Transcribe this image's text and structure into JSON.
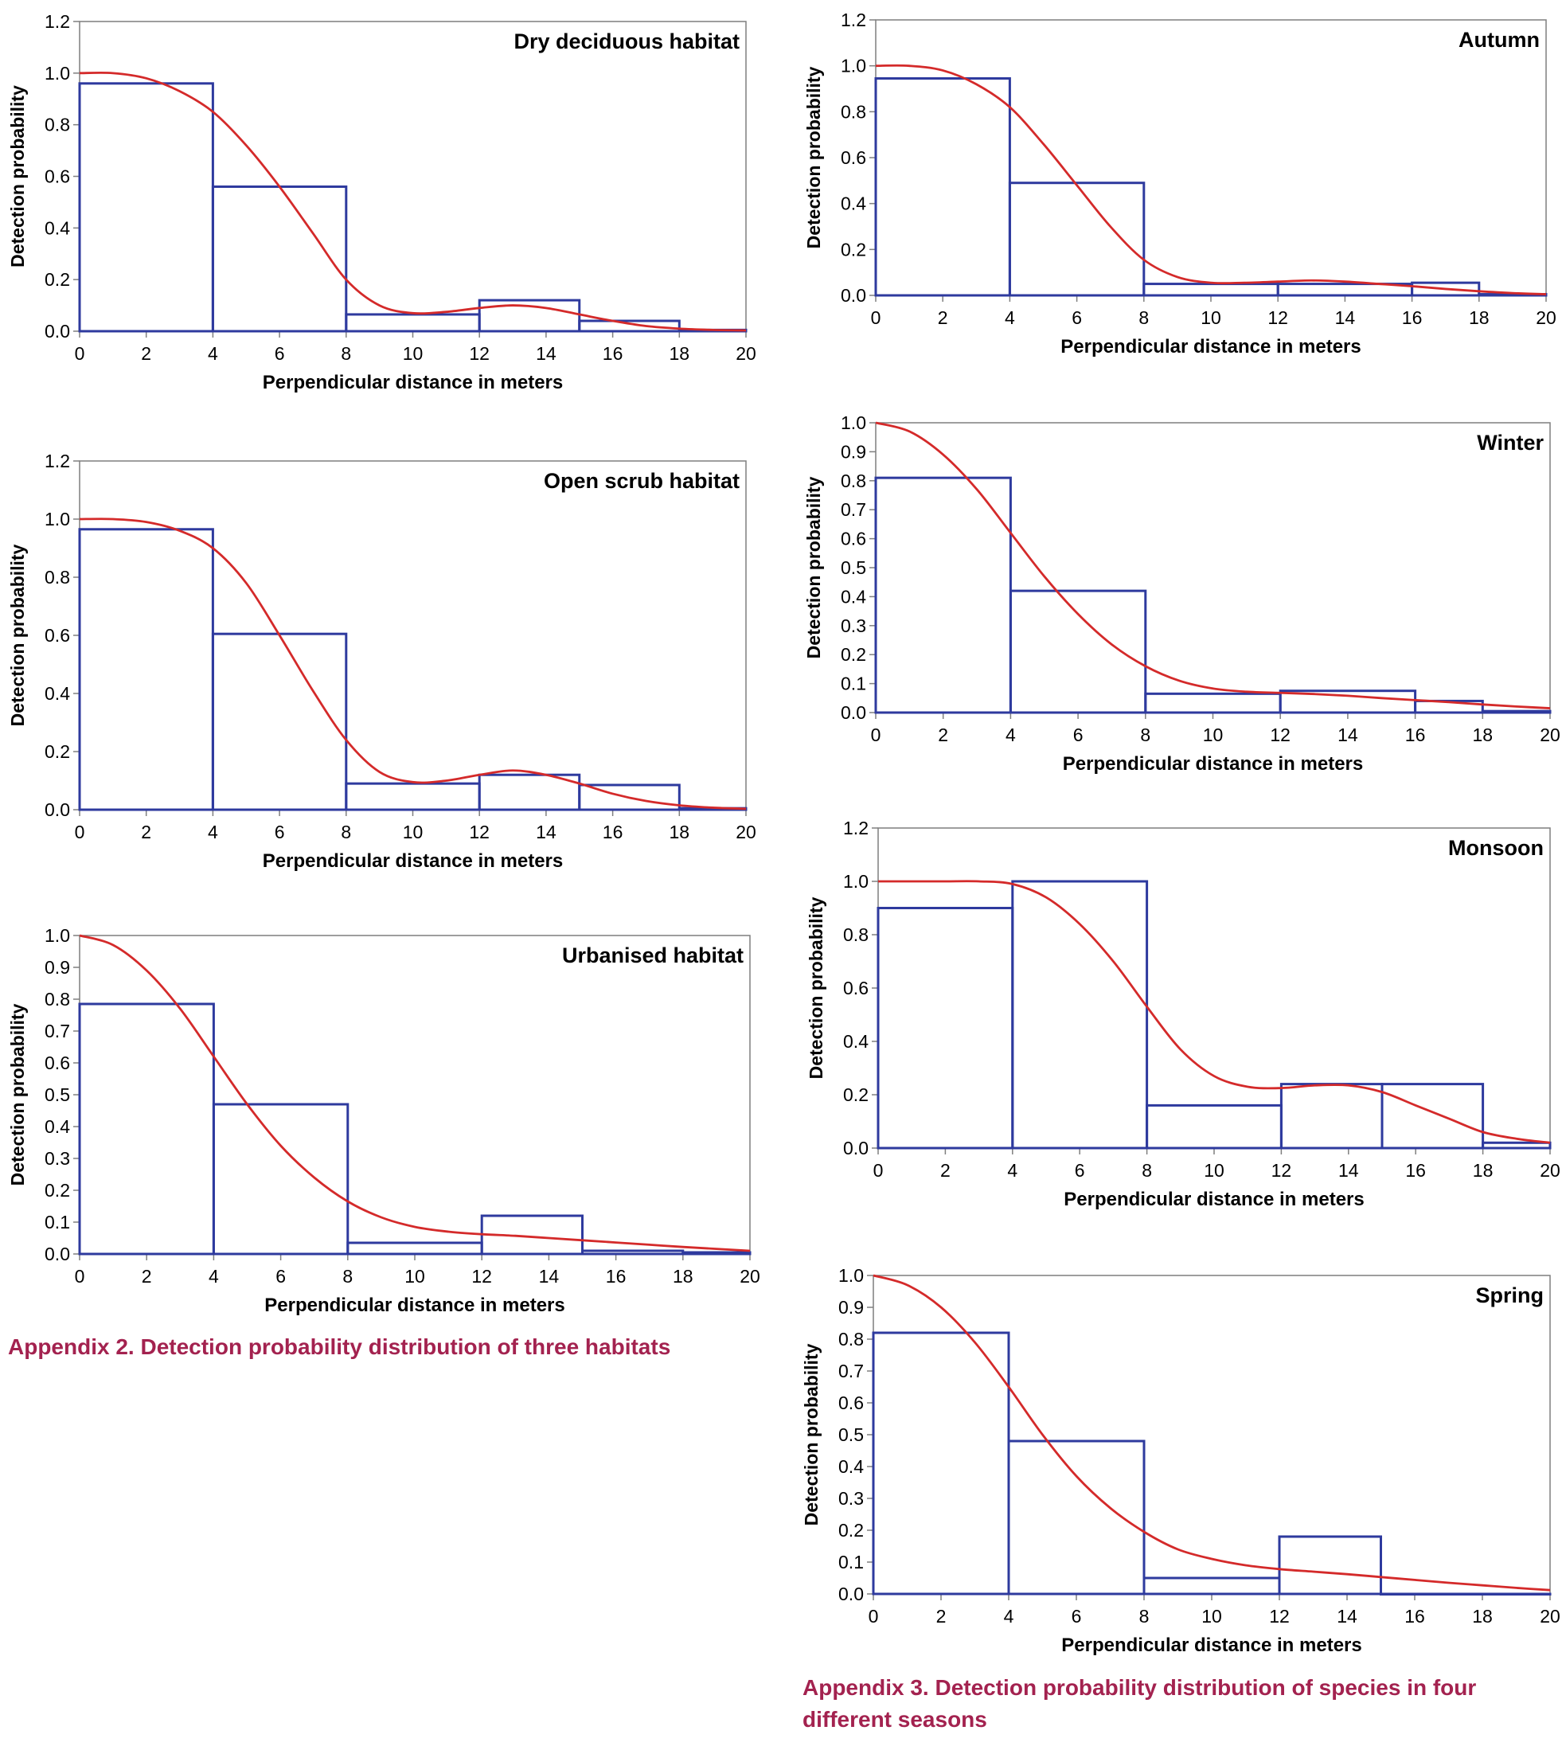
{
  "captions": {
    "appendix2": "Appendix 2. Detection probability distribution of three habitats",
    "appendix3": "Appendix 3. Detection probability distribution of species in four different seasons"
  },
  "colors": {
    "bars": "#2e3a9e",
    "curve": "#d42a2a",
    "caption": "#a3224f",
    "axes": "#7f7f7f"
  },
  "chart_data": [
    {
      "type": "bar",
      "title": "Dry deciduous habitat",
      "xlabel": "Perpendicular distance in meters",
      "ylabel": "Detection probability",
      "xlim": [
        0,
        20
      ],
      "ylim": [
        0,
        1.2
      ],
      "xticks": [
        0,
        2,
        4,
        6,
        8,
        10,
        12,
        14,
        16,
        18,
        20
      ],
      "yticks": [
        "0.0",
        "0.2",
        "0.4",
        "0.6",
        "0.8",
        "1.0",
        "1.2"
      ],
      "bins": [
        [
          0,
          4,
          0.96
        ],
        [
          4,
          8,
          0.56
        ],
        [
          8,
          12,
          0.065
        ],
        [
          12,
          15,
          0.12
        ],
        [
          15,
          18,
          0.04
        ],
        [
          18,
          20,
          0.005
        ]
      ],
      "curve": [
        [
          0,
          1.0
        ],
        [
          1,
          1.0
        ],
        [
          2,
          0.98
        ],
        [
          3,
          0.93
        ],
        [
          4,
          0.85
        ],
        [
          5,
          0.72
        ],
        [
          6,
          0.56
        ],
        [
          7,
          0.38
        ],
        [
          8,
          0.2
        ],
        [
          9,
          0.1
        ],
        [
          10,
          0.07
        ],
        [
          11,
          0.075
        ],
        [
          12,
          0.09
        ],
        [
          13,
          0.1
        ],
        [
          14,
          0.09
        ],
        [
          15,
          0.065
        ],
        [
          16,
          0.04
        ],
        [
          17,
          0.02
        ],
        [
          18,
          0.01
        ],
        [
          19,
          0.005
        ],
        [
          20,
          0.003
        ]
      ]
    },
    {
      "type": "bar",
      "title": "Open scrub habitat",
      "xlabel": "Perpendicular distance in meters",
      "ylabel": "Detection probability",
      "xlim": [
        0,
        20
      ],
      "ylim": [
        0,
        1.2
      ],
      "xticks": [
        0,
        2,
        4,
        6,
        8,
        10,
        12,
        14,
        16,
        18,
        20
      ],
      "yticks": [
        "0.0",
        "0.2",
        "0.4",
        "0.6",
        "0.8",
        "1.0",
        "1.2"
      ],
      "bins": [
        [
          0,
          4,
          0.965
        ],
        [
          4,
          8,
          0.605
        ],
        [
          8,
          12,
          0.09
        ],
        [
          12,
          15,
          0.12
        ],
        [
          15,
          18,
          0.085
        ],
        [
          18,
          20,
          0.005
        ]
      ],
      "curve": [
        [
          0,
          1.0
        ],
        [
          1,
          1.0
        ],
        [
          2,
          0.99
        ],
        [
          3,
          0.96
        ],
        [
          4,
          0.9
        ],
        [
          5,
          0.78
        ],
        [
          6,
          0.6
        ],
        [
          7,
          0.41
        ],
        [
          8,
          0.24
        ],
        [
          9,
          0.13
        ],
        [
          10,
          0.095
        ],
        [
          11,
          0.1
        ],
        [
          12,
          0.12
        ],
        [
          13,
          0.135
        ],
        [
          14,
          0.12
        ],
        [
          15,
          0.09
        ],
        [
          16,
          0.055
        ],
        [
          17,
          0.03
        ],
        [
          18,
          0.015
        ],
        [
          19,
          0.007
        ],
        [
          20,
          0.003
        ]
      ]
    },
    {
      "type": "bar",
      "title": "Urbanised habitat",
      "xlabel": "Perpendicular distance in meters",
      "ylabel": "Detection probability",
      "xlim": [
        0,
        20
      ],
      "ylim": [
        0,
        1.0
      ],
      "xticks": [
        0,
        2,
        4,
        6,
        8,
        10,
        12,
        14,
        16,
        18,
        20
      ],
      "yticks": [
        "0.0",
        "0.1",
        "0.2",
        "0.3",
        "0.4",
        "0.5",
        "0.6",
        "0.7",
        "0.8",
        "0.9",
        "1.0"
      ],
      "bins": [
        [
          0,
          4,
          0.785
        ],
        [
          4,
          8,
          0.47
        ],
        [
          8,
          12,
          0.035
        ],
        [
          12,
          15,
          0.12
        ],
        [
          15,
          18,
          0.01
        ],
        [
          18,
          20,
          0.005
        ]
      ],
      "curve": [
        [
          0,
          1.0
        ],
        [
          1,
          0.97
        ],
        [
          2,
          0.89
        ],
        [
          3,
          0.77
        ],
        [
          4,
          0.62
        ],
        [
          5,
          0.47
        ],
        [
          6,
          0.34
        ],
        [
          7,
          0.24
        ],
        [
          8,
          0.165
        ],
        [
          9,
          0.115
        ],
        [
          10,
          0.085
        ],
        [
          11,
          0.07
        ],
        [
          12,
          0.062
        ],
        [
          13,
          0.057
        ],
        [
          14,
          0.05
        ],
        [
          15,
          0.043
        ],
        [
          16,
          0.036
        ],
        [
          17,
          0.029
        ],
        [
          18,
          0.022
        ],
        [
          19,
          0.016
        ],
        [
          20,
          0.01
        ]
      ]
    },
    {
      "type": "bar",
      "title": "Autumn",
      "xlabel": "Perpendicular distance in meters",
      "ylabel": "Detection probability",
      "xlim": [
        0,
        20
      ],
      "ylim": [
        0,
        1.2
      ],
      "xticks": [
        0,
        2,
        4,
        6,
        8,
        10,
        12,
        14,
        16,
        18,
        20
      ],
      "yticks": [
        "0.0",
        "0.2",
        "0.4",
        "0.6",
        "0.8",
        "1.0",
        "1.2"
      ],
      "bins": [
        [
          0,
          4,
          0.945
        ],
        [
          4,
          8,
          0.49
        ],
        [
          8,
          12,
          0.05
        ],
        [
          12,
          16,
          0.05
        ],
        [
          16,
          18,
          0.055
        ],
        [
          18,
          20,
          0.005
        ]
      ],
      "curve": [
        [
          0,
          1.0
        ],
        [
          1,
          1.0
        ],
        [
          2,
          0.98
        ],
        [
          3,
          0.92
        ],
        [
          4,
          0.82
        ],
        [
          5,
          0.66
        ],
        [
          6,
          0.48
        ],
        [
          7,
          0.3
        ],
        [
          8,
          0.155
        ],
        [
          9,
          0.08
        ],
        [
          10,
          0.055
        ],
        [
          11,
          0.055
        ],
        [
          12,
          0.06
        ],
        [
          13,
          0.065
        ],
        [
          14,
          0.06
        ],
        [
          15,
          0.05
        ],
        [
          16,
          0.04
        ],
        [
          17,
          0.028
        ],
        [
          18,
          0.018
        ],
        [
          19,
          0.01
        ],
        [
          20,
          0.005
        ]
      ]
    },
    {
      "type": "bar",
      "title": "Winter",
      "xlabel": "Perpendicular distance in meters",
      "ylabel": "Detection probability",
      "xlim": [
        0,
        20
      ],
      "ylim": [
        0,
        1.0
      ],
      "xticks": [
        0,
        2,
        4,
        6,
        8,
        10,
        12,
        14,
        16,
        18,
        20
      ],
      "yticks": [
        "0.0",
        "0.1",
        "0.2",
        "0.3",
        "0.4",
        "0.5",
        "0.6",
        "0.7",
        "0.8",
        "0.9",
        "1.0"
      ],
      "bins": [
        [
          0,
          4,
          0.81
        ],
        [
          4,
          8,
          0.42
        ],
        [
          8,
          12,
          0.065
        ],
        [
          12,
          16,
          0.075
        ],
        [
          16,
          18,
          0.04
        ],
        [
          18,
          20,
          0.005
        ]
      ],
      "curve": [
        [
          0,
          1.0
        ],
        [
          1,
          0.97
        ],
        [
          2,
          0.89
        ],
        [
          3,
          0.77
        ],
        [
          4,
          0.62
        ],
        [
          5,
          0.47
        ],
        [
          6,
          0.34
        ],
        [
          7,
          0.235
        ],
        [
          8,
          0.16
        ],
        [
          9,
          0.11
        ],
        [
          10,
          0.083
        ],
        [
          11,
          0.072
        ],
        [
          12,
          0.068
        ],
        [
          13,
          0.064
        ],
        [
          14,
          0.058
        ],
        [
          15,
          0.05
        ],
        [
          16,
          0.043
        ],
        [
          17,
          0.036
        ],
        [
          18,
          0.028
        ],
        [
          19,
          0.021
        ],
        [
          20,
          0.015
        ]
      ]
    },
    {
      "type": "bar",
      "title": "Monsoon",
      "xlabel": "Perpendicular distance in meters",
      "ylabel": "Detection probability",
      "xlim": [
        0,
        20
      ],
      "ylim": [
        0,
        1.2
      ],
      "xticks": [
        0,
        2,
        4,
        6,
        8,
        10,
        12,
        14,
        16,
        18,
        20
      ],
      "yticks": [
        "0.0",
        "0.2",
        "0.4",
        "0.6",
        "0.8",
        "1.0",
        "1.2"
      ],
      "bins": [
        [
          0,
          4,
          0.9
        ],
        [
          4,
          8,
          1.0
        ],
        [
          8,
          12,
          0.16
        ],
        [
          12,
          15,
          0.24
        ],
        [
          15,
          18,
          0.24
        ],
        [
          18,
          20,
          0.02
        ]
      ],
      "curve": [
        [
          0,
          1.0
        ],
        [
          1,
          1.0
        ],
        [
          2,
          1.0
        ],
        [
          3,
          1.0
        ],
        [
          4,
          0.99
        ],
        [
          5,
          0.94
        ],
        [
          6,
          0.84
        ],
        [
          7,
          0.7
        ],
        [
          8,
          0.53
        ],
        [
          9,
          0.37
        ],
        [
          10,
          0.27
        ],
        [
          11,
          0.23
        ],
        [
          12,
          0.225
        ],
        [
          13,
          0.235
        ],
        [
          14,
          0.235
        ],
        [
          15,
          0.21
        ],
        [
          16,
          0.16
        ],
        [
          17,
          0.11
        ],
        [
          18,
          0.06
        ],
        [
          19,
          0.035
        ],
        [
          20,
          0.02
        ]
      ]
    },
    {
      "type": "bar",
      "title": "Spring",
      "xlabel": "Perpendicular distance in meters",
      "ylabel": "Detection probability",
      "xlim": [
        0,
        20
      ],
      "ylim": [
        0,
        1.0
      ],
      "xticks": [
        0,
        2,
        4,
        6,
        8,
        10,
        12,
        14,
        16,
        18,
        20
      ],
      "yticks": [
        "0.0",
        "0.1",
        "0.2",
        "0.3",
        "0.4",
        "0.5",
        "0.6",
        "0.7",
        "0.8",
        "0.9",
        "1.0"
      ],
      "bins": [
        [
          0,
          4,
          0.82
        ],
        [
          4,
          8,
          0.48
        ],
        [
          8,
          12,
          0.05
        ],
        [
          12,
          15,
          0.18
        ],
        [
          15,
          18,
          0.0
        ],
        [
          18,
          20,
          0.0
        ]
      ],
      "curve": [
        [
          0,
          1.0
        ],
        [
          1,
          0.97
        ],
        [
          2,
          0.9
        ],
        [
          3,
          0.79
        ],
        [
          4,
          0.65
        ],
        [
          5,
          0.5
        ],
        [
          6,
          0.37
        ],
        [
          7,
          0.27
        ],
        [
          8,
          0.195
        ],
        [
          9,
          0.14
        ],
        [
          10,
          0.11
        ],
        [
          11,
          0.09
        ],
        [
          12,
          0.078
        ],
        [
          13,
          0.07
        ],
        [
          14,
          0.062
        ],
        [
          15,
          0.053
        ],
        [
          16,
          0.044
        ],
        [
          17,
          0.035
        ],
        [
          18,
          0.027
        ],
        [
          19,
          0.019
        ],
        [
          20,
          0.012
        ]
      ]
    }
  ]
}
